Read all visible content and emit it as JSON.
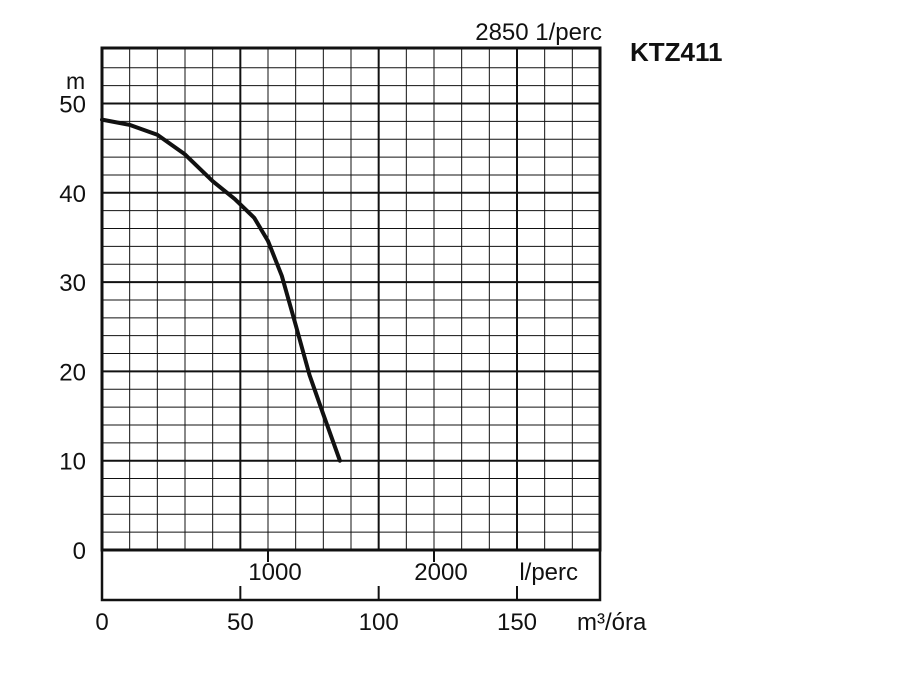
{
  "chart_data": {
    "type": "line",
    "title": "KTZ411",
    "subtitle": "2850 1/perc",
    "ylabel": "m",
    "xlabel_primary": "l/perc",
    "xlabel_secondary": "m³/óra",
    "ylim": [
      0,
      50
    ],
    "xlim_m3h": [
      0,
      180
    ],
    "y_ticks": [
      "0",
      "10",
      "20",
      "30",
      "40",
      "50"
    ],
    "x_ticks_lperc": [
      "1000",
      "2000"
    ],
    "x_ticks_m3h": [
      "0",
      "50",
      "100",
      "150"
    ],
    "grid": true,
    "series": [
      {
        "color": "#111111",
        "x": [
          0,
          10,
          20,
          30,
          40,
          48,
          55,
          60,
          65,
          70,
          75,
          80,
          86
        ],
        "y": [
          48.2,
          47.6,
          46.5,
          44.3,
          41.3,
          39.3,
          37.2,
          34.6,
          30.7,
          25.2,
          19.6,
          15.2,
          10.0
        ]
      }
    ]
  }
}
